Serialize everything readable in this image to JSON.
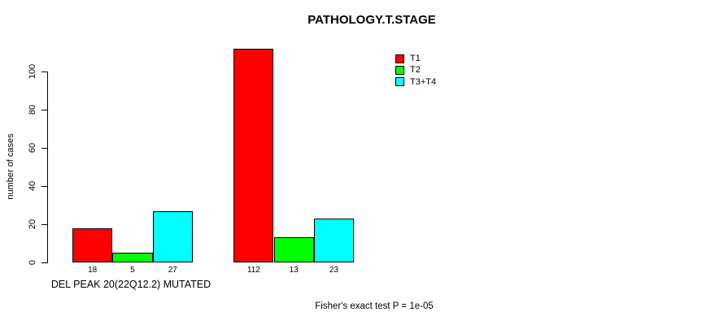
{
  "title": "PATHOLOGY.T.STAGE",
  "y_axis": {
    "label": "number of cases",
    "tick_labels": [
      "0",
      "20",
      "40",
      "60",
      "80",
      "100"
    ]
  },
  "x_axis": {
    "group_label": "DEL PEAK 20(22Q12.2) MUTATED"
  },
  "footnote": "Fisher's exact test P = 1e-05",
  "legend": {
    "items": [
      {
        "label": "T1",
        "color": "#ff0000"
      },
      {
        "label": "T2",
        "color": "#00ff00"
      },
      {
        "label": "T3+T4",
        "color": "#00ffff"
      }
    ]
  },
  "chart_data": {
    "type": "bar",
    "title": "PATHOLOGY.T.STAGE",
    "xlabel": "DEL PEAK 20(22Q12.2) MUTATED",
    "ylabel": "number of cases",
    "ylim": [
      0,
      112
    ],
    "yticks": [
      0,
      20,
      40,
      60,
      80,
      100
    ],
    "grid": false,
    "legend_position": "top-right-inside",
    "categories": [
      "DEL PEAK 20(22Q12.2) MUTATED",
      ""
    ],
    "series": [
      {
        "name": "T1",
        "color": "#ff0000",
        "values": [
          18,
          112
        ]
      },
      {
        "name": "T2",
        "color": "#00ff00",
        "values": [
          5,
          13
        ]
      },
      {
        "name": "T3+T4",
        "color": "#00ffff",
        "values": [
          27,
          23
        ]
      }
    ],
    "bar_value_labels": [
      [
        18,
        5,
        27
      ],
      [
        112,
        13,
        23
      ]
    ],
    "annotation": "Fisher's exact test P = 1e-05"
  }
}
